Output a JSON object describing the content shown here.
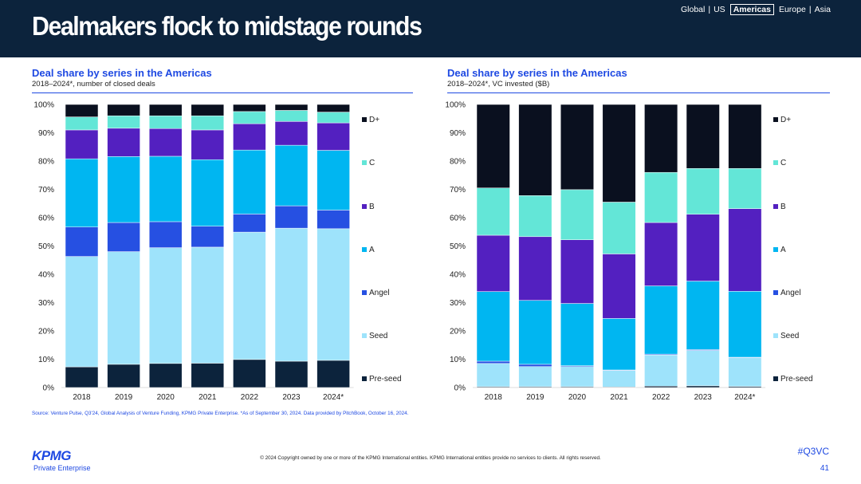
{
  "header": {
    "title": "Dealmakers flock to midstage rounds",
    "regions": [
      {
        "label": "Global",
        "active": false
      },
      {
        "label": "US",
        "active": false
      },
      {
        "label": "Americas",
        "active": true
      },
      {
        "label": "Europe",
        "active": false
      },
      {
        "label": "Asia",
        "active": false
      }
    ]
  },
  "colors": {
    "header_bg": "#0c233c",
    "accent": "#1e49e2",
    "Pre-seed": "#0c233c",
    "Seed": "#9ee3fb",
    "Angel": "#2650e2",
    "A": "#00b6f1",
    "B": "#5320c0",
    "C": "#63e6d7",
    "D+": "#0a101f"
  },
  "charts": [
    {
      "title": "Deal share by series in the Americas",
      "subtitle": "2018–2024*, number of closed deals"
    },
    {
      "title": "Deal share by series in the Americas",
      "subtitle": "2018–2024*, VC invested ($B)"
    }
  ],
  "chart_data": [
    {
      "type": "bar",
      "stacked": true,
      "title": "Deal share by series in the Americas",
      "subtitle": "2018–2024*, number of closed deals",
      "categories": [
        "2018",
        "2019",
        "2020",
        "2021",
        "2022",
        "2023",
        "2024*"
      ],
      "yticks": [
        "0%",
        "10%",
        "20%",
        "30%",
        "40%",
        "50%",
        "60%",
        "70%",
        "80%",
        "90%",
        "100%"
      ],
      "ylim": [
        0,
        100
      ],
      "legend_position": "right",
      "legend": [
        "D+",
        "C",
        "B",
        "A",
        "Angel",
        "Seed",
        "Pre-seed"
      ],
      "series": [
        {
          "name": "Pre-seed",
          "values": [
            7.3,
            8.2,
            8.5,
            8.6,
            9.9,
            9.3,
            9.6
          ]
        },
        {
          "name": "Seed",
          "values": [
            39.0,
            39.8,
            40.9,
            41.0,
            45.0,
            47.0,
            46.5
          ]
        },
        {
          "name": "Angel",
          "values": [
            10.4,
            10.3,
            9.2,
            7.4,
            6.4,
            7.9,
            6.6
          ]
        },
        {
          "name": "A",
          "values": [
            24.1,
            23.3,
            23.1,
            23.5,
            22.6,
            21.4,
            21.1
          ]
        },
        {
          "name": "B",
          "values": [
            10.2,
            10.0,
            9.8,
            10.5,
            9.3,
            8.4,
            9.7
          ]
        },
        {
          "name": "C",
          "values": [
            4.6,
            4.4,
            4.5,
            5.0,
            4.3,
            3.9,
            3.8
          ]
        },
        {
          "name": "D+",
          "values": [
            4.4,
            4.0,
            4.0,
            4.0,
            2.5,
            2.1,
            2.7
          ]
        }
      ]
    },
    {
      "type": "bar",
      "stacked": true,
      "title": "Deal share by series in the Americas",
      "subtitle": "2018–2024*, VC invested ($B)",
      "categories": [
        "2018",
        "2019",
        "2020",
        "2021",
        "2022",
        "2023",
        "2024*"
      ],
      "yticks": [
        "0%",
        "10%",
        "20%",
        "30%",
        "40%",
        "50%",
        "60%",
        "70%",
        "80%",
        "90%",
        "100%"
      ],
      "ylim": [
        0,
        100
      ],
      "legend_position": "right",
      "legend": [
        "D+",
        "C",
        "B",
        "A",
        "Angel",
        "Seed",
        "Pre-seed"
      ],
      "series": [
        {
          "name": "Pre-seed",
          "values": [
            0.3,
            0.3,
            0.3,
            0.2,
            0.5,
            0.6,
            0.4
          ]
        },
        {
          "name": "Seed",
          "values": [
            8.2,
            7.1,
            7.1,
            5.8,
            11.0,
            12.5,
            10.1
          ]
        },
        {
          "name": "Angel",
          "values": [
            0.8,
            0.8,
            0.3,
            0.2,
            0.3,
            0.3,
            0.2
          ]
        },
        {
          "name": "A",
          "values": [
            24.6,
            22.6,
            22.0,
            18.2,
            24.1,
            24.2,
            23.3
          ]
        },
        {
          "name": "B",
          "values": [
            19.9,
            22.5,
            22.5,
            22.8,
            22.4,
            23.6,
            29.2
          ]
        },
        {
          "name": "C",
          "values": [
            16.7,
            14.5,
            17.7,
            18.3,
            17.7,
            16.2,
            14.2
          ]
        },
        {
          "name": "D+",
          "values": [
            29.5,
            32.2,
            30.1,
            34.5,
            24.0,
            22.6,
            22.6
          ]
        }
      ]
    }
  ],
  "footer": {
    "source": "Source: Venture Pulse, Q3'24, Global Analysis of Venture Funding, KPMG Private Enterprise. *As of September 30, 2024. Data provided by PitchBook, October 16, 2024.",
    "logo": "KPMG",
    "logo_sub": "Private Enterprise",
    "copyright": "© 2024 Copyright owned by one or more of the KPMG International entities. KPMG International entities provide no services to clients. All rights reserved.",
    "hashtag": "#Q3VC",
    "page_number": "41"
  }
}
